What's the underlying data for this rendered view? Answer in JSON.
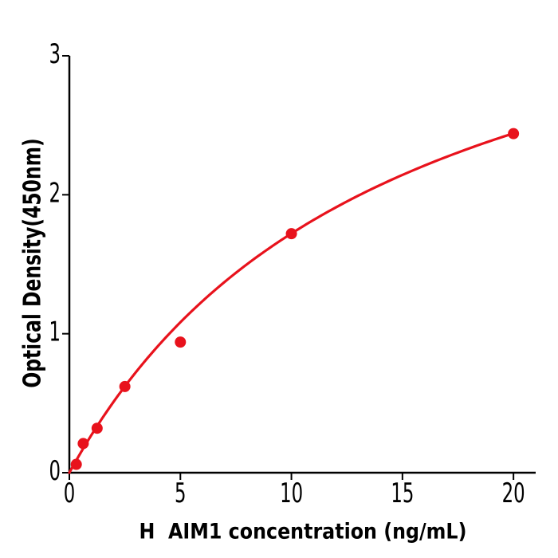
{
  "figure": {
    "background": "#ffffff"
  },
  "chart_data": {
    "type": "scatter",
    "title": "",
    "xlabel": "H  AIM1 concentration (ng/mL)",
    "ylabel": "Optical Density(450nm)",
    "x_ticks": [
      0,
      5,
      10,
      15,
      20
    ],
    "y_ticks": [
      0,
      1,
      2,
      3
    ],
    "xlim": [
      0,
      21
    ],
    "ylim": [
      0,
      3
    ],
    "grid": false,
    "legend": false,
    "axis_color": "#000000",
    "text_color": "#000000",
    "series": [
      {
        "name": "standard-points",
        "type": "scatter",
        "x": [
          0.3125,
          0.625,
          1.25,
          2.5,
          5,
          10,
          20
        ],
        "y": [
          0.06,
          0.21,
          0.32,
          0.62,
          0.94,
          1.72,
          2.44
        ],
        "color": "#e8121c"
      },
      {
        "name": "fit-curve",
        "type": "line",
        "model": "y = a*x / (b + x)",
        "a": 4.2,
        "b": 14.4,
        "x_range": [
          0,
          20
        ],
        "color": "#e8121c"
      }
    ]
  }
}
